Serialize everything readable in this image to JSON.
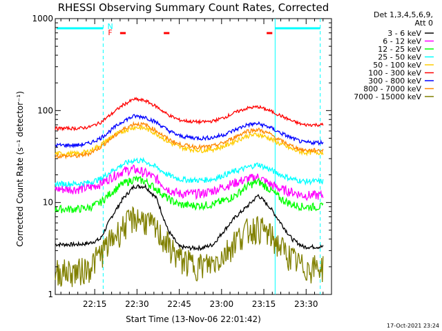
{
  "chart_data": {
    "type": "line",
    "title": "RHESSI Observing Summary Count Rates, Corrected",
    "xlabel": "Start Time (13-Nov-06 22:01:42)",
    "ylabel": "Corrected Count Rate (s⁻¹ detector⁻¹)",
    "y_scale": "log",
    "ylim": [
      1,
      1000
    ],
    "y_ticks": [
      {
        "value": 1,
        "label": "1"
      },
      {
        "value": 10,
        "label": "10"
      },
      {
        "value": 100,
        "label": "100"
      },
      {
        "value": 1000,
        "label": "1000"
      }
    ],
    "x_ticks": [
      {
        "minutes": 14,
        "label": "22:15"
      },
      {
        "minutes": 29,
        "label": "22:30"
      },
      {
        "minutes": 44,
        "label": "22:45"
      },
      {
        "minutes": 59,
        "label": "23:00"
      },
      {
        "minutes": 74,
        "label": "23:15"
      },
      {
        "minutes": 89,
        "label": "23:30"
      }
    ],
    "xlim_minutes": [
      0,
      98
    ],
    "legend_header": [
      "Det 1,3,4,5,6,9,",
      "Att 0"
    ],
    "legend_position": "right",
    "series": [
      {
        "name": "3 - 6 keV",
        "color": "#000000",
        "values": [
          3.5,
          3.5,
          3.5,
          3.6,
          4,
          7,
          11,
          15,
          15,
          11,
          5,
          3.3,
          3.2,
          3.2,
          3.5,
          5,
          7,
          9,
          12,
          9,
          6,
          4,
          3.3
        ]
      },
      {
        "name": "6 - 12 keV",
        "color": "#ff00ff",
        "values": [
          14,
          14,
          14,
          14.5,
          16,
          19,
          22,
          23,
          21,
          18,
          14,
          12.5,
          12.5,
          12.5,
          13.5,
          15,
          16.5,
          18,
          19,
          16,
          14,
          13,
          12
        ]
      },
      {
        "name": "12 - 25 keV",
        "color": "#00ff00",
        "values": [
          8.5,
          8.5,
          8.5,
          8.8,
          10,
          13,
          16,
          18,
          17,
          14,
          11,
          9.5,
          9.3,
          9.3,
          9.6,
          10.5,
          12,
          15,
          17,
          14,
          11,
          9.5,
          9
        ]
      },
      {
        "name": "25 - 50 keV",
        "color": "#00ffff",
        "values": [
          16,
          16,
          16,
          16.5,
          18,
          22,
          26,
          29,
          28,
          24,
          20,
          18,
          17.5,
          17.5,
          18,
          20,
          22,
          24,
          26,
          23,
          20,
          18,
          17
        ]
      },
      {
        "name": "50 - 100 keV",
        "color": "#ffcc00",
        "values": [
          34,
          34,
          34,
          36,
          42,
          52,
          60,
          66,
          64,
          56,
          46,
          40,
          38,
          37,
          38,
          41,
          47,
          53,
          55,
          50,
          43,
          38,
          35
        ]
      },
      {
        "name": "100 - 300 keV",
        "color": "#ff0000",
        "values": [
          64,
          64,
          64,
          66,
          74,
          92,
          115,
          133,
          128,
          110,
          90,
          79,
          76,
          75,
          77,
          84,
          96,
          106,
          110,
          100,
          88,
          77,
          70
        ]
      },
      {
        "name": "300 - 800 keV",
        "color": "#0000ff",
        "values": [
          42,
          42,
          42,
          44,
          50,
          62,
          77,
          87,
          85,
          74,
          61,
          53,
          51,
          50,
          51,
          55,
          62,
          70,
          72,
          66,
          57,
          50,
          45
        ]
      },
      {
        "name": "800 - 7000 keV",
        "color": "#ff8800",
        "values": [
          32,
          32,
          32,
          34,
          40,
          50,
          62,
          72,
          70,
          60,
          49,
          43,
          41,
          40,
          41,
          45,
          52,
          60,
          62,
          56,
          47,
          41,
          37
        ]
      },
      {
        "name": "7000 - 15000 keV",
        "color": "#808000",
        "values": [
          1.8,
          1.8,
          1.8,
          2,
          2.8,
          4,
          5.5,
          7,
          6.5,
          5,
          3.5,
          2.5,
          2.2,
          2.1,
          2.2,
          2.8,
          4,
          5,
          5.5,
          4.5,
          3.3,
          2.5,
          2
        ]
      }
    ],
    "x_minutes": [
      0,
      4,
      8,
      12,
      16,
      20,
      24,
      28,
      32,
      36,
      40,
      44,
      48,
      52,
      56,
      60,
      64,
      68,
      72,
      76,
      80,
      84,
      88
    ],
    "flags": [
      {
        "label": "N",
        "color": "#00ffff"
      },
      {
        "label": "F",
        "color": "#ff0000"
      }
    ],
    "grid": false
  },
  "footer": {
    "timestamp": "17-Oct-2021 23:24"
  },
  "colors": {
    "background": "#ffffff",
    "axis": "#000000",
    "night": "#00ffff",
    "flare": "#ff0000"
  }
}
